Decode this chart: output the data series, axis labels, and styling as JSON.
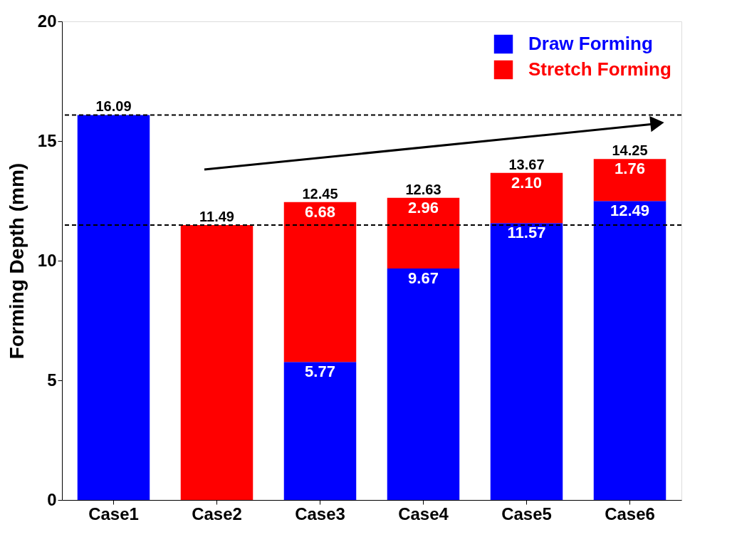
{
  "chart_data": {
    "type": "bar",
    "stacked": true,
    "ylabel": "Forming Depth (mm)",
    "categories": [
      "Case1",
      "Case2",
      "Case3",
      "Case4",
      "Case5",
      "Case6"
    ],
    "series": [
      {
        "name": "Draw Forming",
        "color": "#0000ff",
        "values": [
          16.09,
          0,
          5.77,
          9.67,
          11.57,
          12.49
        ],
        "value_labels": [
          null,
          null,
          "5.77",
          "9.67",
          "11.57",
          "12.49"
        ]
      },
      {
        "name": "Stretch Forming",
        "color": "#ff0000",
        "values": [
          0,
          11.49,
          6.68,
          2.96,
          2.1,
          1.76
        ],
        "value_labels": [
          null,
          null,
          "6.68",
          "2.96",
          "2.10",
          "1.76"
        ]
      }
    ],
    "totals": [
      "16.09",
      "11.49",
      "12.45",
      "12.63",
      "13.67",
      "14.25"
    ],
    "ylim": [
      0,
      20
    ],
    "yticks": [
      0,
      5,
      10,
      15,
      20
    ],
    "ref_lines": [
      {
        "axis": "y",
        "value": 16.09,
        "line_style": "dashed",
        "color": "#000000"
      },
      {
        "axis": "y",
        "value": 11.49,
        "line_style": "dashed",
        "color": "#000000"
      }
    ],
    "grid": false,
    "legend": "top right"
  }
}
